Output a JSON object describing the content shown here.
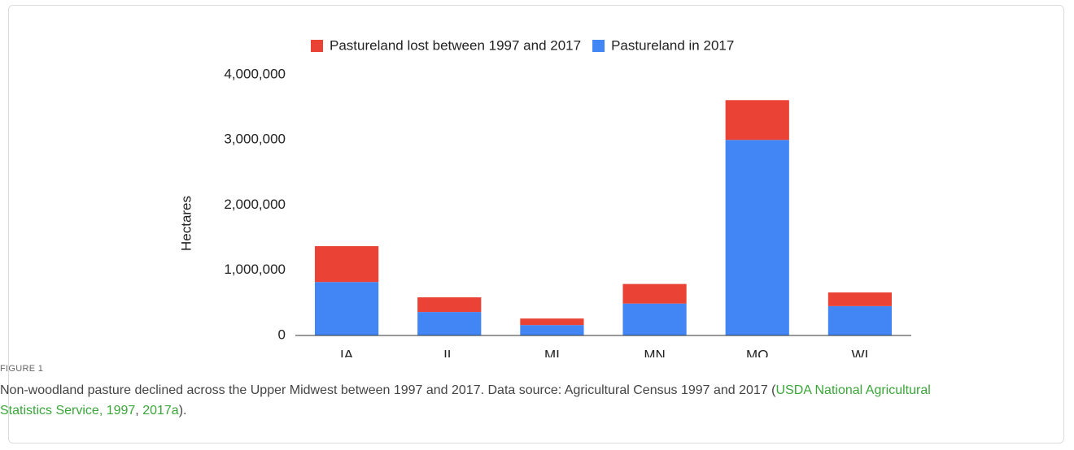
{
  "chart_data": {
    "type": "stacked_bar",
    "ylabel": "Hectares",
    "categories": [
      "IA",
      "IL",
      "MI",
      "MN",
      "MO",
      "WI"
    ],
    "series": [
      {
        "name": "Pastureland lost between 1997 and 2017",
        "color": "#ea4335",
        "values": [
          550000,
          225000,
          100000,
          300000,
          610000,
          210000
        ]
      },
      {
        "name": "Pastureland in 2017",
        "color": "#4285f4",
        "values": [
          820000,
          360000,
          160000,
          490000,
          3000000,
          450000
        ]
      }
    ],
    "ylim": [
      0,
      4000000
    ],
    "yticks": [
      0,
      {
        "value": 1000000,
        "label": "1,000,000"
      },
      {
        "value": 2000000,
        "label": "2,000,000"
      },
      {
        "value": 3000000,
        "label": "3,000,000"
      },
      {
        "value": 4000000,
        "label": "4,000,000"
      }
    ],
    "grid": false,
    "legend": "top"
  },
  "caption": {
    "label": "FIGURE 1",
    "text": "Non-woodland pasture declined across the Upper Midwest between 1997 and 2017. Data source: Agricultural Census 1997 and 2017 (",
    "link1": "USDA National Agricultural Statistics Service, 1997",
    "sep": ", ",
    "link2": "2017a",
    "end": ")."
  }
}
